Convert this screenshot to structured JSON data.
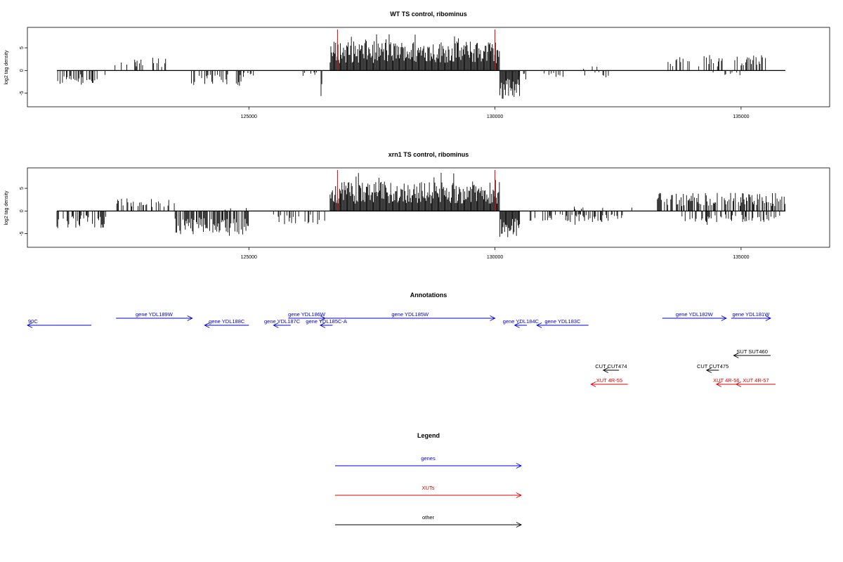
{
  "chart_data": [
    {
      "type": "bar",
      "title": "WT TS control, ribominus",
      "ylabel": "log2 tag density",
      "xlim": [
        120500,
        136800
      ],
      "ylim": [
        -8,
        9.5
      ],
      "yticks": [
        -5,
        0,
        5
      ],
      "xticks": [
        125000,
        130000,
        135000
      ],
      "marker_lines": [
        126800,
        130000
      ],
      "marker_color": "#dd0000",
      "segments": [
        {
          "start": 121100,
          "end": 121900,
          "sign": -1,
          "amp": 3.2,
          "density": 0.45
        },
        {
          "start": 121900,
          "end": 122100,
          "sign": -1,
          "amp": 2.0,
          "density": 0.2
        },
        {
          "start": 122200,
          "end": 123100,
          "sign": 1,
          "amp": 2.6,
          "density": 0.25
        },
        {
          "start": 123100,
          "end": 123400,
          "sign": 1,
          "amp": 2.8,
          "density": 0.35
        },
        {
          "start": 123800,
          "end": 124900,
          "sign": -1,
          "amp": 3.4,
          "density": 0.5
        },
        {
          "start": 124900,
          "end": 125100,
          "sign": -1,
          "amp": 1.8,
          "density": 0.2
        },
        {
          "start": 126100,
          "end": 126400,
          "sign": -1,
          "amp": 1.5,
          "density": 0.2
        },
        {
          "start": 126450,
          "end": 126550,
          "sign": -1,
          "amp": 5.8,
          "density": 0.4
        },
        {
          "start": 126650,
          "end": 130100,
          "sign": 1,
          "amp": 6.5,
          "density": 1.0
        },
        {
          "start": 130100,
          "end": 130500,
          "sign": -1,
          "amp": 6.5,
          "density": 1.0
        },
        {
          "start": 130500,
          "end": 130700,
          "sign": -1,
          "amp": 2.0,
          "density": 0.3
        },
        {
          "start": 131000,
          "end": 131400,
          "sign": -1,
          "amp": 1.5,
          "density": 0.2
        },
        {
          "start": 131600,
          "end": 132400,
          "sign": -1,
          "amp": 1.2,
          "density": 0.1
        },
        {
          "start": 131800,
          "end": 132600,
          "sign": 1,
          "amp": 1.0,
          "density": 0.08
        },
        {
          "start": 133500,
          "end": 134200,
          "sign": 1,
          "amp": 2.6,
          "density": 0.3
        },
        {
          "start": 134200,
          "end": 135500,
          "sign": 1,
          "amp": 3.4,
          "density": 0.35
        },
        {
          "start": 134400,
          "end": 135100,
          "sign": -1,
          "amp": 1.2,
          "density": 0.08
        }
      ]
    },
    {
      "type": "bar",
      "title": "xrn1 TS control, ribominus",
      "ylabel": "log2 tag density",
      "xlim": [
        120500,
        136800
      ],
      "ylim": [
        -8,
        9.5
      ],
      "yticks": [
        -5,
        0,
        5
      ],
      "xticks": [
        125000,
        130000,
        135000
      ],
      "marker_lines": [
        126800,
        130000
      ],
      "marker_color": "#dd0000",
      "segments": [
        {
          "start": 121100,
          "end": 122100,
          "sign": -1,
          "amp": 3.8,
          "density": 0.55
        },
        {
          "start": 122300,
          "end": 123500,
          "sign": 1,
          "amp": 2.8,
          "density": 0.35
        },
        {
          "start": 123500,
          "end": 125000,
          "sign": -1,
          "amp": 5.2,
          "density": 0.7
        },
        {
          "start": 124500,
          "end": 125100,
          "sign": 1,
          "amp": 1.0,
          "density": 0.08
        },
        {
          "start": 125500,
          "end": 126550,
          "sign": -1,
          "amp": 3.0,
          "density": 0.3
        },
        {
          "start": 126650,
          "end": 130100,
          "sign": 1,
          "amp": 6.5,
          "density": 1.0
        },
        {
          "start": 130100,
          "end": 130500,
          "sign": -1,
          "amp": 5.8,
          "density": 1.0
        },
        {
          "start": 130700,
          "end": 132600,
          "sign": -1,
          "amp": 2.5,
          "density": 0.35
        },
        {
          "start": 131500,
          "end": 133000,
          "sign": 1,
          "amp": 1.0,
          "density": 0.06
        },
        {
          "start": 133300,
          "end": 135900,
          "sign": 1,
          "amp": 4.0,
          "density": 0.6
        },
        {
          "start": 133800,
          "end": 135900,
          "sign": -1,
          "amp": 2.5,
          "density": 0.35
        }
      ]
    }
  ],
  "annotations": {
    "title": "Annotations",
    "xlim": [
      120500,
      136800
    ],
    "items": [
      {
        "label": "90C",
        "start": 120500,
        "end": 121800,
        "dir": -1,
        "row": 1,
        "color": "#0000cc"
      },
      {
        "label": "gene YDL189W",
        "start": 122300,
        "end": 123850,
        "dir": 1,
        "row": 0,
        "color": "#0000cc"
      },
      {
        "label": "gene YDL188C",
        "start": 124100,
        "end": 125000,
        "dir": -1,
        "row": 1,
        "color": "#0000cc"
      },
      {
        "label": "gene YDL187C",
        "start": 125500,
        "end": 125850,
        "dir": -1,
        "row": 1,
        "color": "#0000cc"
      },
      {
        "label": "gene YDL186W",
        "start": 125800,
        "end": 126550,
        "dir": 1,
        "row": 0,
        "color": "#0000cc"
      },
      {
        "label": "gene YDL185C-A",
        "start": 126450,
        "end": 126700,
        "dir": -1,
        "row": 1,
        "color": "#0000cc"
      },
      {
        "label": "gene YDL185W",
        "start": 126550,
        "end": 130000,
        "dir": 1,
        "row": 0,
        "color": "#0000cc"
      },
      {
        "label": "gene YDL184C",
        "start": 130400,
        "end": 130650,
        "dir": -1,
        "row": 1,
        "color": "#0000cc"
      },
      {
        "label": "gene YDL183C",
        "start": 130850,
        "end": 131900,
        "dir": -1,
        "row": 1,
        "color": "#0000cc"
      },
      {
        "label": "gene YDL182W",
        "start": 133400,
        "end": 134700,
        "dir": 1,
        "row": 0,
        "color": "#0000cc"
      },
      {
        "label": "gene YDL181W",
        "start": 134800,
        "end": 135600,
        "dir": 1,
        "row": 0,
        "color": "#0000cc"
      },
      {
        "label": "SUT SUT460",
        "start": 134850,
        "end": 135600,
        "dir": -1,
        "row": 3,
        "color": "#000000"
      },
      {
        "label": "CUT CUT474",
        "start": 132200,
        "end": 132520,
        "dir": -1,
        "row": 4,
        "color": "#000000"
      },
      {
        "label": "CUT CUT475",
        "start": 134300,
        "end": 134550,
        "dir": -1,
        "row": 4,
        "color": "#000000"
      },
      {
        "label": "XUT 4R-55",
        "start": 131950,
        "end": 132700,
        "dir": -1,
        "row": 5,
        "color": "#dd0000"
      },
      {
        "label": "XUT 4R-56",
        "start": 134500,
        "end": 134900,
        "dir": -1,
        "row": 5,
        "color": "#dd0000"
      },
      {
        "label": "XUT 4R-57",
        "start": 134900,
        "end": 135700,
        "dir": -1,
        "row": 5,
        "color": "#dd0000"
      }
    ]
  },
  "legend": {
    "title": "Legend",
    "entries": [
      {
        "label": "genes",
        "color": "#0000ee"
      },
      {
        "label": "XUTs",
        "color": "#dd0000"
      },
      {
        "label": "other",
        "color": "#000000"
      }
    ]
  }
}
